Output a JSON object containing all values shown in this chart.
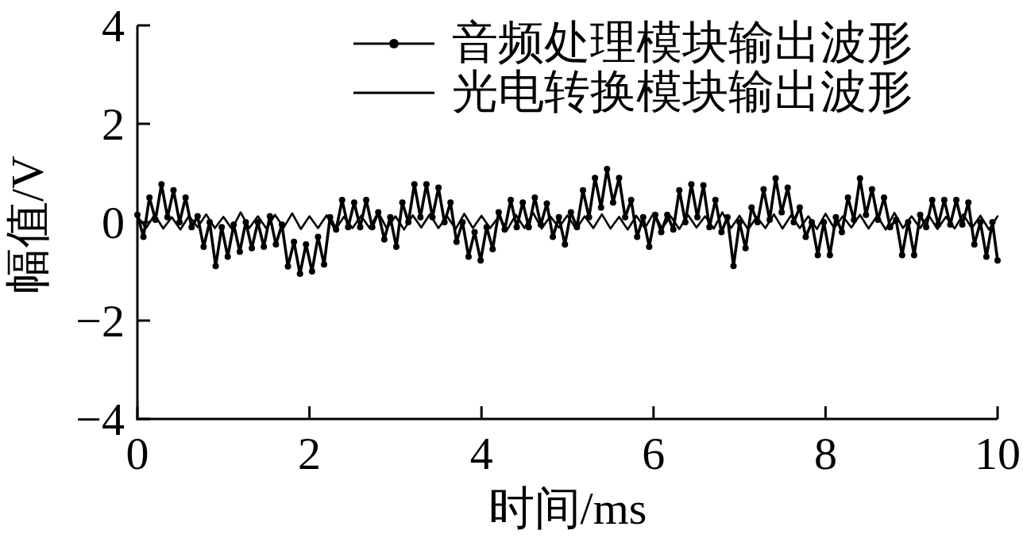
{
  "chart_data": {
    "type": "line",
    "xlabel": "时间/ms",
    "ylabel": "幅值/V",
    "xlim": [
      0,
      10
    ],
    "ylim": [
      -4,
      4
    ],
    "xticks": [
      0,
      2,
      4,
      6,
      8,
      10
    ],
    "yticks": [
      -4,
      -2,
      0,
      2,
      4
    ],
    "legend": "top right",
    "series": [
      {
        "name": "音频处理模块输出波形",
        "color": "#000000",
        "marker": "circle",
        "x": [
          0,
          0.07,
          0.14,
          0.21,
          0.28,
          0.35,
          0.42,
          0.49,
          0.56,
          0.63,
          0.7,
          0.77,
          0.84,
          0.91,
          0.98,
          1.05,
          1.12,
          1.19,
          1.26,
          1.33,
          1.4,
          1.47,
          1.54,
          1.61,
          1.68,
          1.75,
          1.82,
          1.89,
          1.96,
          2.03,
          2.1,
          2.17,
          2.24,
          2.31,
          2.38,
          2.45,
          2.52,
          2.59,
          2.66,
          2.73,
          2.8,
          2.87,
          2.94,
          3.01,
          3.08,
          3.15,
          3.22,
          3.29,
          3.36,
          3.43,
          3.5,
          3.57,
          3.64,
          3.71,
          3.78,
          3.85,
          3.92,
          3.99,
          4.06,
          4.13,
          4.2,
          4.27,
          4.34,
          4.41,
          4.48,
          4.55,
          4.62,
          4.69,
          4.76,
          4.83,
          4.9,
          4.97,
          5.04,
          5.11,
          5.18,
          5.25,
          5.32,
          5.39,
          5.46,
          5.53,
          5.6,
          5.67,
          5.74,
          5.81,
          5.88,
          5.95,
          6.02,
          6.09,
          6.16,
          6.23,
          6.3,
          6.37,
          6.44,
          6.51,
          6.58,
          6.65,
          6.72,
          6.79,
          6.86,
          6.93,
          7.0,
          7.07,
          7.14,
          7.21,
          7.28,
          7.35,
          7.42,
          7.49,
          7.56,
          7.63,
          7.7,
          7.77,
          7.84,
          7.91,
          7.98,
          8.05,
          8.12,
          8.19,
          8.26,
          8.33,
          8.4,
          8.47,
          8.54,
          8.61,
          8.68,
          8.75,
          8.82,
          8.89,
          8.96,
          9.03,
          9.1,
          9.17,
          9.24,
          9.31,
          9.38,
          9.45,
          9.52,
          9.59,
          9.66,
          9.73,
          9.8,
          9.87,
          9.94,
          10
        ],
        "values": [
          0.15,
          -0.3,
          0.5,
          0.05,
          0.77,
          0.1,
          0.65,
          0.0,
          0.5,
          -0.1,
          0.12,
          -0.5,
          0.0,
          -0.89,
          -0.1,
          -0.7,
          -0.05,
          -0.6,
          0.0,
          -0.53,
          0.0,
          -0.5,
          0.12,
          -0.45,
          -0.05,
          -0.9,
          -0.4,
          -1.05,
          -0.45,
          -1.0,
          -0.3,
          -0.86,
          0.1,
          -0.15,
          0.45,
          -0.1,
          0.4,
          -0.1,
          0.45,
          -0.1,
          0.2,
          -0.35,
          0.1,
          -0.5,
          0.4,
          0.0,
          0.77,
          0.1,
          0.77,
          0.1,
          0.7,
          0.0,
          0.4,
          -0.4,
          0.0,
          -0.7,
          -0.2,
          -0.78,
          -0.1,
          -0.55,
          0.2,
          -0.15,
          0.45,
          -0.1,
          0.4,
          -0.1,
          0.5,
          -0.05,
          0.38,
          -0.3,
          0.1,
          -0.45,
          0.2,
          -0.1,
          0.65,
          0.1,
          0.9,
          0.3,
          1.08,
          0.4,
          0.9,
          0.1,
          0.45,
          -0.3,
          0.1,
          -0.5,
          0.15,
          -0.2,
          0.15,
          -0.15,
          0.65,
          0.0,
          0.77,
          0.1,
          0.75,
          -0.1,
          0.45,
          -0.2,
          0.1,
          -0.89,
          0.0,
          -0.53,
          0.3,
          0.0,
          0.67,
          0.05,
          0.89,
          0.2,
          0.7,
          0.0,
          0.3,
          -0.3,
          0.0,
          -0.67,
          0.0,
          -0.67,
          0.1,
          -0.2,
          0.5,
          0.05,
          0.89,
          0.15,
          0.67,
          0.05,
          0.5,
          -0.1,
          0.05,
          -0.67,
          0.0,
          -0.67,
          0.15,
          -0.1,
          0.45,
          -0.05,
          0.45,
          -0.05,
          0.45,
          -0.05,
          0.4,
          -0.45,
          0.0,
          -0.7,
          0.0,
          -0.78
        ]
      },
      {
        "name": "光电转换模块输出波形",
        "color": "#000000",
        "marker": "none",
        "x": [
          0,
          0.1,
          0.2,
          0.3,
          0.4,
          0.5,
          0.6,
          0.7,
          0.8,
          0.9,
          1.0,
          1.1,
          1.2,
          1.3,
          1.4,
          1.5,
          1.6,
          1.7,
          1.8,
          1.9,
          2.0,
          2.1,
          2.2,
          2.3,
          2.4,
          2.5,
          2.6,
          2.7,
          2.8,
          2.9,
          3.0,
          3.1,
          3.2,
          3.3,
          3.4,
          3.5,
          3.6,
          3.7,
          3.8,
          3.9,
          4.0,
          4.1,
          4.2,
          4.3,
          4.4,
          4.5,
          4.6,
          4.7,
          4.8,
          4.9,
          5.0,
          5.1,
          5.2,
          5.3,
          5.4,
          5.5,
          5.6,
          5.7,
          5.8,
          5.9,
          6.0,
          6.1,
          6.2,
          6.3,
          6.4,
          6.5,
          6.6,
          6.7,
          6.8,
          6.9,
          7.0,
          7.1,
          7.2,
          7.3,
          7.4,
          7.5,
          7.6,
          7.7,
          7.8,
          7.9,
          8.0,
          8.1,
          8.2,
          8.3,
          8.4,
          8.5,
          8.6,
          8.7,
          8.8,
          8.9,
          9.0,
          9.1,
          9.2,
          9.3,
          9.4,
          9.5,
          9.6,
          9.7,
          9.8,
          9.9,
          10
        ],
        "values": [
          0.12,
          -0.12,
          0.15,
          -0.13,
          0.1,
          -0.15,
          0.13,
          -0.1,
          0.16,
          -0.12,
          0.11,
          -0.14,
          0.2,
          -0.12,
          0.12,
          -0.13,
          0.15,
          -0.11,
          0.18,
          -0.14,
          0.12,
          -0.12,
          0.14,
          -0.16,
          0.11,
          -0.12,
          0.13,
          -0.12,
          0.2,
          -0.13,
          0.12,
          -0.15,
          0.14,
          -0.11,
          0.16,
          -0.12,
          0.12,
          -0.14,
          0.17,
          -0.12,
          0.13,
          -0.12,
          0.11,
          -0.15,
          0.15,
          -0.12,
          0.19,
          -0.13,
          0.12,
          -0.11,
          0.14,
          -0.14,
          0.12,
          -0.12,
          0.16,
          -0.13,
          0.11,
          -0.15,
          0.13,
          -0.12,
          0.18,
          -0.12,
          0.12,
          -0.14,
          0.15,
          -0.11,
          0.12,
          -0.13,
          0.2,
          -0.12,
          0.13,
          -0.15,
          0.11,
          -0.12,
          0.16,
          -0.13,
          0.14,
          -0.12,
          0.12,
          -0.14,
          0.17,
          -0.12,
          0.12,
          -0.11,
          0.15,
          -0.13,
          0.13,
          -0.15,
          0.19,
          -0.12,
          0.12,
          -0.12,
          0.14,
          -0.14,
          0.11,
          -0.13,
          0.16,
          -0.12,
          0.13,
          -0.15,
          0.12
        ]
      }
    ]
  }
}
